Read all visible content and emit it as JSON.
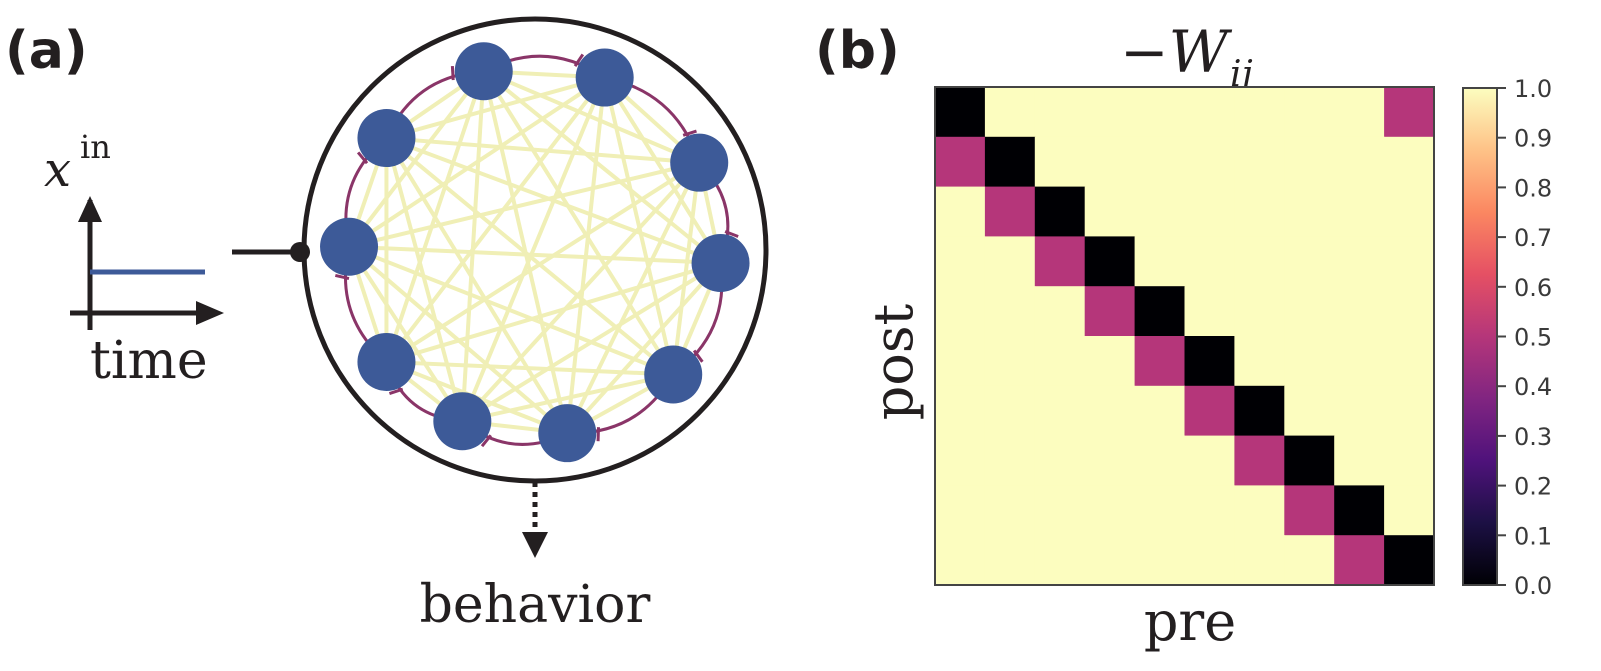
{
  "panel_a": {
    "label": "(a)",
    "input_symbol": "x",
    "input_superscript": "in",
    "time_label": "time",
    "output_label": "behavior",
    "neuron_count": 10,
    "colors": {
      "neuron": "#3d5a98",
      "all_to_all": "#f0efb6",
      "ring": "#8a3568",
      "stroke": "#231f20",
      "signal": "#3d5a98"
    }
  },
  "panel_b": {
    "label": "(b)",
    "title": "−W",
    "title_subscript": "ij",
    "xlabel": "pre",
    "ylabel": "post"
  },
  "chart_data": {
    "type": "heatmap",
    "title": "−W_ij",
    "xlabel": "pre",
    "ylabel": "post",
    "size": 10,
    "matrix": [
      [
        0.0,
        1.0,
        1.0,
        1.0,
        1.0,
        1.0,
        1.0,
        1.0,
        1.0,
        0.5
      ],
      [
        0.5,
        0.0,
        1.0,
        1.0,
        1.0,
        1.0,
        1.0,
        1.0,
        1.0,
        1.0
      ],
      [
        1.0,
        0.5,
        0.0,
        1.0,
        1.0,
        1.0,
        1.0,
        1.0,
        1.0,
        1.0
      ],
      [
        1.0,
        1.0,
        0.5,
        0.0,
        1.0,
        1.0,
        1.0,
        1.0,
        1.0,
        1.0
      ],
      [
        1.0,
        1.0,
        1.0,
        0.5,
        0.0,
        1.0,
        1.0,
        1.0,
        1.0,
        1.0
      ],
      [
        1.0,
        1.0,
        1.0,
        1.0,
        0.5,
        0.0,
        1.0,
        1.0,
        1.0,
        1.0
      ],
      [
        1.0,
        1.0,
        1.0,
        1.0,
        1.0,
        0.5,
        0.0,
        1.0,
        1.0,
        1.0
      ],
      [
        1.0,
        1.0,
        1.0,
        1.0,
        1.0,
        1.0,
        0.5,
        0.0,
        1.0,
        1.0
      ],
      [
        1.0,
        1.0,
        1.0,
        1.0,
        1.0,
        1.0,
        1.0,
        0.5,
        0.0,
        1.0
      ],
      [
        1.0,
        1.0,
        1.0,
        1.0,
        1.0,
        1.0,
        1.0,
        1.0,
        0.5,
        0.0
      ]
    ],
    "colorbar": {
      "range": [
        0.0,
        1.0
      ],
      "ticks": [
        "0.0",
        "0.1",
        "0.2",
        "0.3",
        "0.4",
        "0.5",
        "0.6",
        "0.7",
        "0.8",
        "0.9",
        "1.0"
      ],
      "colormap": "magma",
      "stops": [
        "#000004",
        "#1c1044",
        "#4f127b",
        "#812581",
        "#b5367a",
        "#e55064",
        "#fb8761",
        "#fec287",
        "#fcfdbf"
      ]
    }
  }
}
